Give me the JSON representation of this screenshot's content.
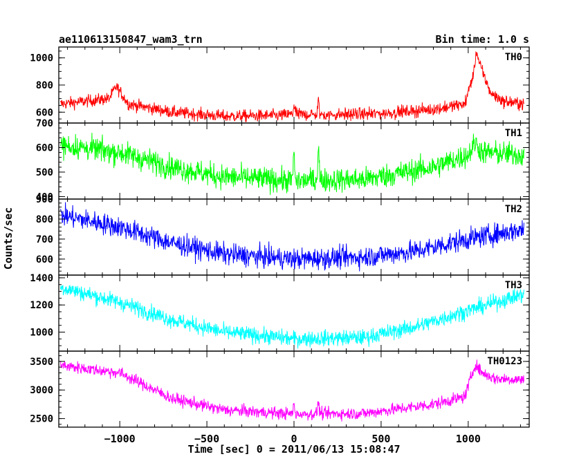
{
  "header": {
    "title": "ae110613150847_wam3_trn",
    "bin_time": "Bin time: 1.0 s"
  },
  "chart_data": {
    "type": "line",
    "xlabel": "Time [sec] 0 = 2011/06/13 15:08:47",
    "ylabel": "Counts/sec",
    "xlim": [
      -1350,
      1350
    ],
    "xticks": [
      -1000,
      -500,
      0,
      500,
      1000
    ],
    "x_data_range": [
      -1340,
      1320
    ],
    "x_tick_labels": [
      "−1000",
      "−500",
      "0",
      "500",
      "1000"
    ],
    "panels": [
      {
        "name": "TH0",
        "color": "#ff0000",
        "ylim": [
          520,
          1080
        ],
        "yticks": [
          600,
          800,
          1000
        ],
        "y_tick_labels": [
          "600",
          "800",
          "1000"
        ],
        "baseline": [
          [
            -1340,
            660
          ],
          [
            -1060,
            700
          ],
          [
            -1020,
            790
          ],
          [
            -950,
            660
          ],
          [
            -700,
            600
          ],
          [
            -400,
            570
          ],
          [
            -100,
            575
          ],
          [
            0,
            585
          ],
          [
            200,
            580
          ],
          [
            500,
            590
          ],
          [
            800,
            620
          ],
          [
            980,
            660
          ],
          [
            1030,
            880
          ],
          [
            1050,
            1020
          ],
          [
            1080,
            900
          ],
          [
            1130,
            740
          ],
          [
            1200,
            680
          ],
          [
            1320,
            660
          ]
        ],
        "noise": 32,
        "spikes": [
          [
            0,
            80
          ],
          [
            140,
            120
          ],
          [
            1045,
            60
          ]
        ]
      },
      {
        "name": "TH1",
        "color": "#00ff00",
        "ylim": [
          390,
          700
        ],
        "yticks": [
          400,
          500,
          600,
          700
        ],
        "y_tick_labels": [
          "400",
          "500",
          "600",
          "700"
        ],
        "baseline": [
          [
            -1340,
            610
          ],
          [
            -1000,
            580
          ],
          [
            -700,
            520
          ],
          [
            -400,
            480
          ],
          [
            0,
            465
          ],
          [
            400,
            470
          ],
          [
            800,
            520
          ],
          [
            1000,
            570
          ],
          [
            1040,
            620
          ],
          [
            1080,
            580
          ],
          [
            1320,
            570
          ]
        ],
        "noise": 35,
        "spikes": [
          [
            0,
            130
          ],
          [
            140,
            170
          ]
        ]
      },
      {
        "name": "TH2",
        "color": "#0000ff",
        "ylim": [
          520,
          900
        ],
        "yticks": [
          600,
          700,
          800,
          900
        ],
        "y_tick_labels": [
          "600",
          "700",
          "800",
          "900"
        ],
        "baseline": [
          [
            -1340,
            820
          ],
          [
            -1000,
            760
          ],
          [
            -700,
            680
          ],
          [
            -400,
            625
          ],
          [
            0,
            600
          ],
          [
            400,
            610
          ],
          [
            700,
            640
          ],
          [
            1000,
            700
          ],
          [
            1320,
            750
          ]
        ],
        "noise": 38,
        "spikes": []
      },
      {
        "name": "TH3",
        "color": "#00ffff",
        "ylim": [
          860,
          1420
        ],
        "yticks": [
          1000,
          1200,
          1400
        ],
        "y_tick_labels": [
          "1000",
          "1200",
          "1400"
        ],
        "baseline": [
          [
            -1340,
            1330
          ],
          [
            -1000,
            1220
          ],
          [
            -700,
            1090
          ],
          [
            -400,
            1000
          ],
          [
            0,
            950
          ],
          [
            400,
            960
          ],
          [
            700,
            1040
          ],
          [
            1000,
            1160
          ],
          [
            1320,
            1280
          ]
        ],
        "noise": 42,
        "spikes": []
      },
      {
        "name": "TH0123",
        "color": "#ff00ff",
        "ylim": [
          2350,
          3680
        ],
        "yticks": [
          2500,
          3000,
          3500
        ],
        "y_tick_labels": [
          "2500",
          "3000",
          "3500"
        ],
        "baseline": [
          [
            -1340,
            3430
          ],
          [
            -1000,
            3300
          ],
          [
            -900,
            3150
          ],
          [
            -700,
            2850
          ],
          [
            -400,
            2650
          ],
          [
            0,
            2580
          ],
          [
            400,
            2590
          ],
          [
            800,
            2750
          ],
          [
            980,
            2880
          ],
          [
            1040,
            3450
          ],
          [
            1080,
            3300
          ],
          [
            1150,
            3200
          ],
          [
            1320,
            3180
          ]
        ],
        "noise": 75,
        "spikes": [
          [
            0,
            200
          ],
          [
            140,
            250
          ]
        ]
      }
    ]
  }
}
